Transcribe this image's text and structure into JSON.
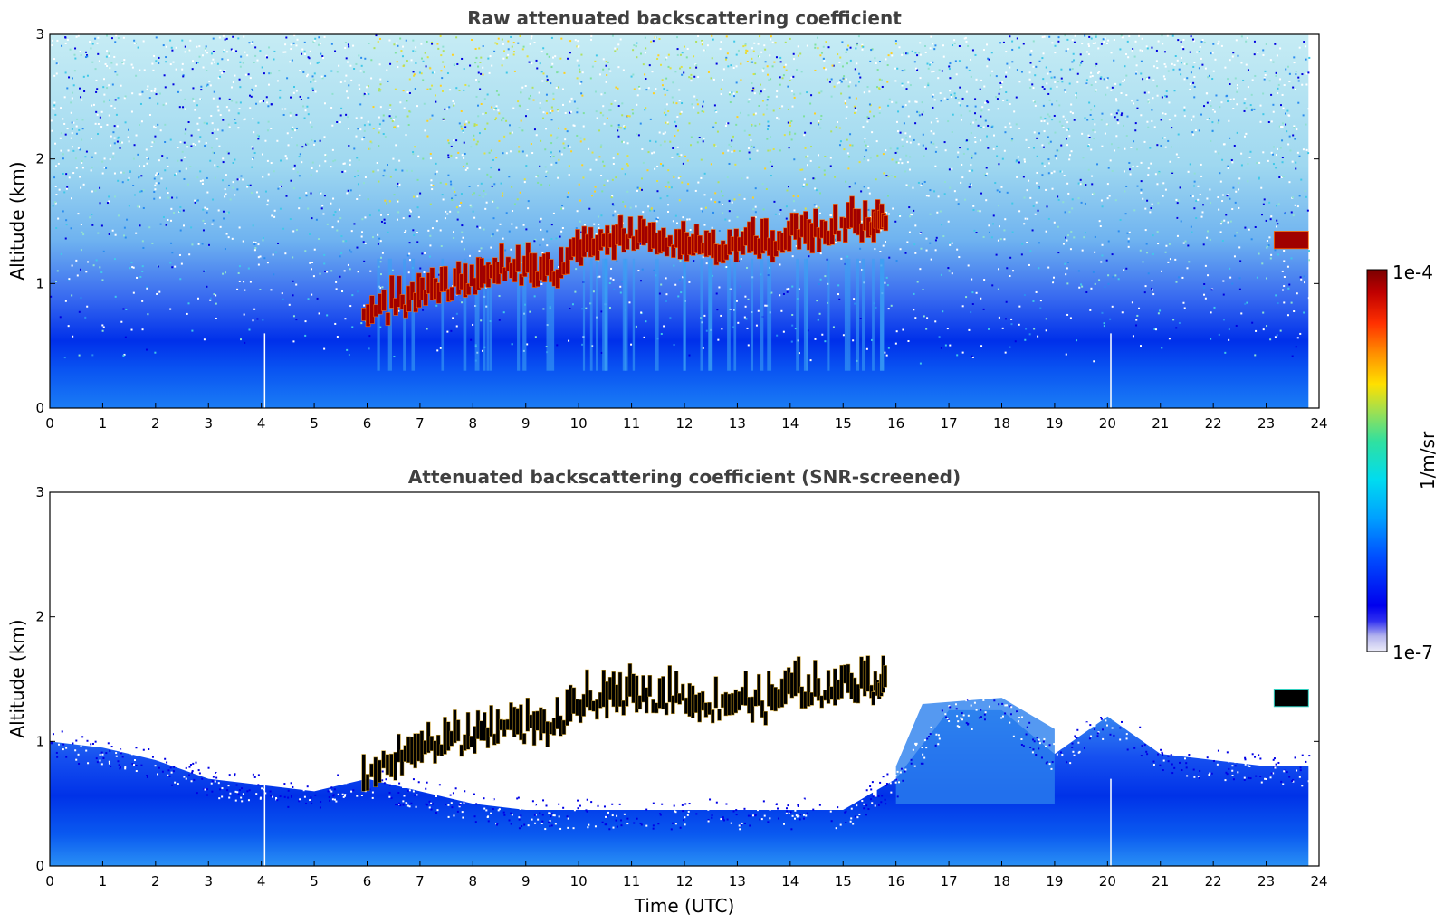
{
  "chart_data": [
    {
      "type": "heatmap",
      "title": "Raw attenuated backscattering coefficient",
      "xlabel": "",
      "ylabel": "Altitude (km)",
      "xlim": [
        0,
        24
      ],
      "ylim": [
        0,
        3
      ],
      "xticks": [
        "0",
        "1",
        "2",
        "3",
        "4",
        "5",
        "6",
        "7",
        "8",
        "9",
        "10",
        "11",
        "12",
        "13",
        "14",
        "15",
        "16",
        "17",
        "18",
        "19",
        "20",
        "21",
        "22",
        "23",
        "24"
      ],
      "yticks": [
        "0",
        "1",
        "2",
        "3"
      ],
      "layers": [
        {
          "name": "near-surface blue layer",
          "value": "1e-6",
          "alt_range_km": [
            0,
            0.5
          ],
          "time_range_utc": [
            0,
            23.8
          ]
        },
        {
          "name": "noisy high background (daytime)",
          "value": "1e-5",
          "alt_range_km": [
            1.5,
            3
          ],
          "time_range_utc": [
            6,
            16
          ]
        },
        {
          "name": "cloud layer",
          "value": "1e-4",
          "alt_range_km": [
            0.6,
            1.7
          ],
          "time_range_utc": [
            5.9,
            15.8
          ]
        },
        {
          "name": "late cloud",
          "value": "1e-4",
          "alt_range_km": [
            1.25,
            1.45
          ],
          "time_range_utc": [
            23.1,
            23.8
          ]
        }
      ]
    },
    {
      "type": "heatmap",
      "title": "Attenuated backscattering coefficient (SNR-screened)",
      "xlabel": "Time (UTC)",
      "ylabel": "Altitude (km)",
      "xlim": [
        0,
        24
      ],
      "ylim": [
        0,
        3
      ],
      "xticks": [
        "0",
        "1",
        "2",
        "3",
        "4",
        "5",
        "6",
        "7",
        "8",
        "9",
        "10",
        "11",
        "12",
        "13",
        "14",
        "15",
        "16",
        "17",
        "18",
        "19",
        "20",
        "21",
        "22",
        "23",
        "24"
      ],
      "yticks": [
        "0",
        "1",
        "2",
        "3"
      ],
      "boundary_layer_top_km": {
        "time_utc": [
          0,
          1,
          2,
          3,
          4,
          5,
          6,
          7,
          8,
          9,
          10,
          11,
          12,
          13,
          14,
          15,
          16,
          17,
          18,
          19,
          20,
          21,
          22,
          23,
          23.8
        ],
        "alt_km": [
          1.0,
          0.95,
          0.85,
          0.7,
          0.65,
          0.6,
          0.7,
          0.6,
          0.5,
          0.45,
          0.45,
          0.45,
          0.45,
          0.45,
          0.45,
          0.45,
          0.7,
          1.25,
          1.25,
          0.9,
          1.2,
          0.9,
          0.85,
          0.8,
          0.8
        ]
      },
      "cloud_base_km": {
        "time_utc": [
          5.9,
          6.5,
          7,
          7.5,
          8,
          8.5,
          9,
          9.5,
          10,
          10.5,
          11,
          11.5,
          12,
          12.5,
          13,
          13.5,
          14,
          14.5,
          15,
          15.5,
          15.8
        ],
        "alt_km": [
          0.65,
          0.75,
          0.85,
          0.92,
          0.95,
          1.05,
          1.05,
          1.0,
          1.2,
          1.25,
          1.3,
          1.3,
          1.25,
          1.2,
          1.25,
          1.2,
          1.35,
          1.3,
          1.4,
          1.35,
          1.45
        ]
      }
    }
  ],
  "colorbar": {
    "label": "1/m/sr",
    "max_label": "1e-4",
    "min_label": "1e-7",
    "colors": [
      "#e8e8f6",
      "#b6b6f0",
      "#0000ee",
      "#0050ff",
      "#00a0ff",
      "#00e0e0",
      "#40e080",
      "#c0e040",
      "#ffe000",
      "#ff9000",
      "#ff3000",
      "#c00000",
      "#800000"
    ]
  }
}
